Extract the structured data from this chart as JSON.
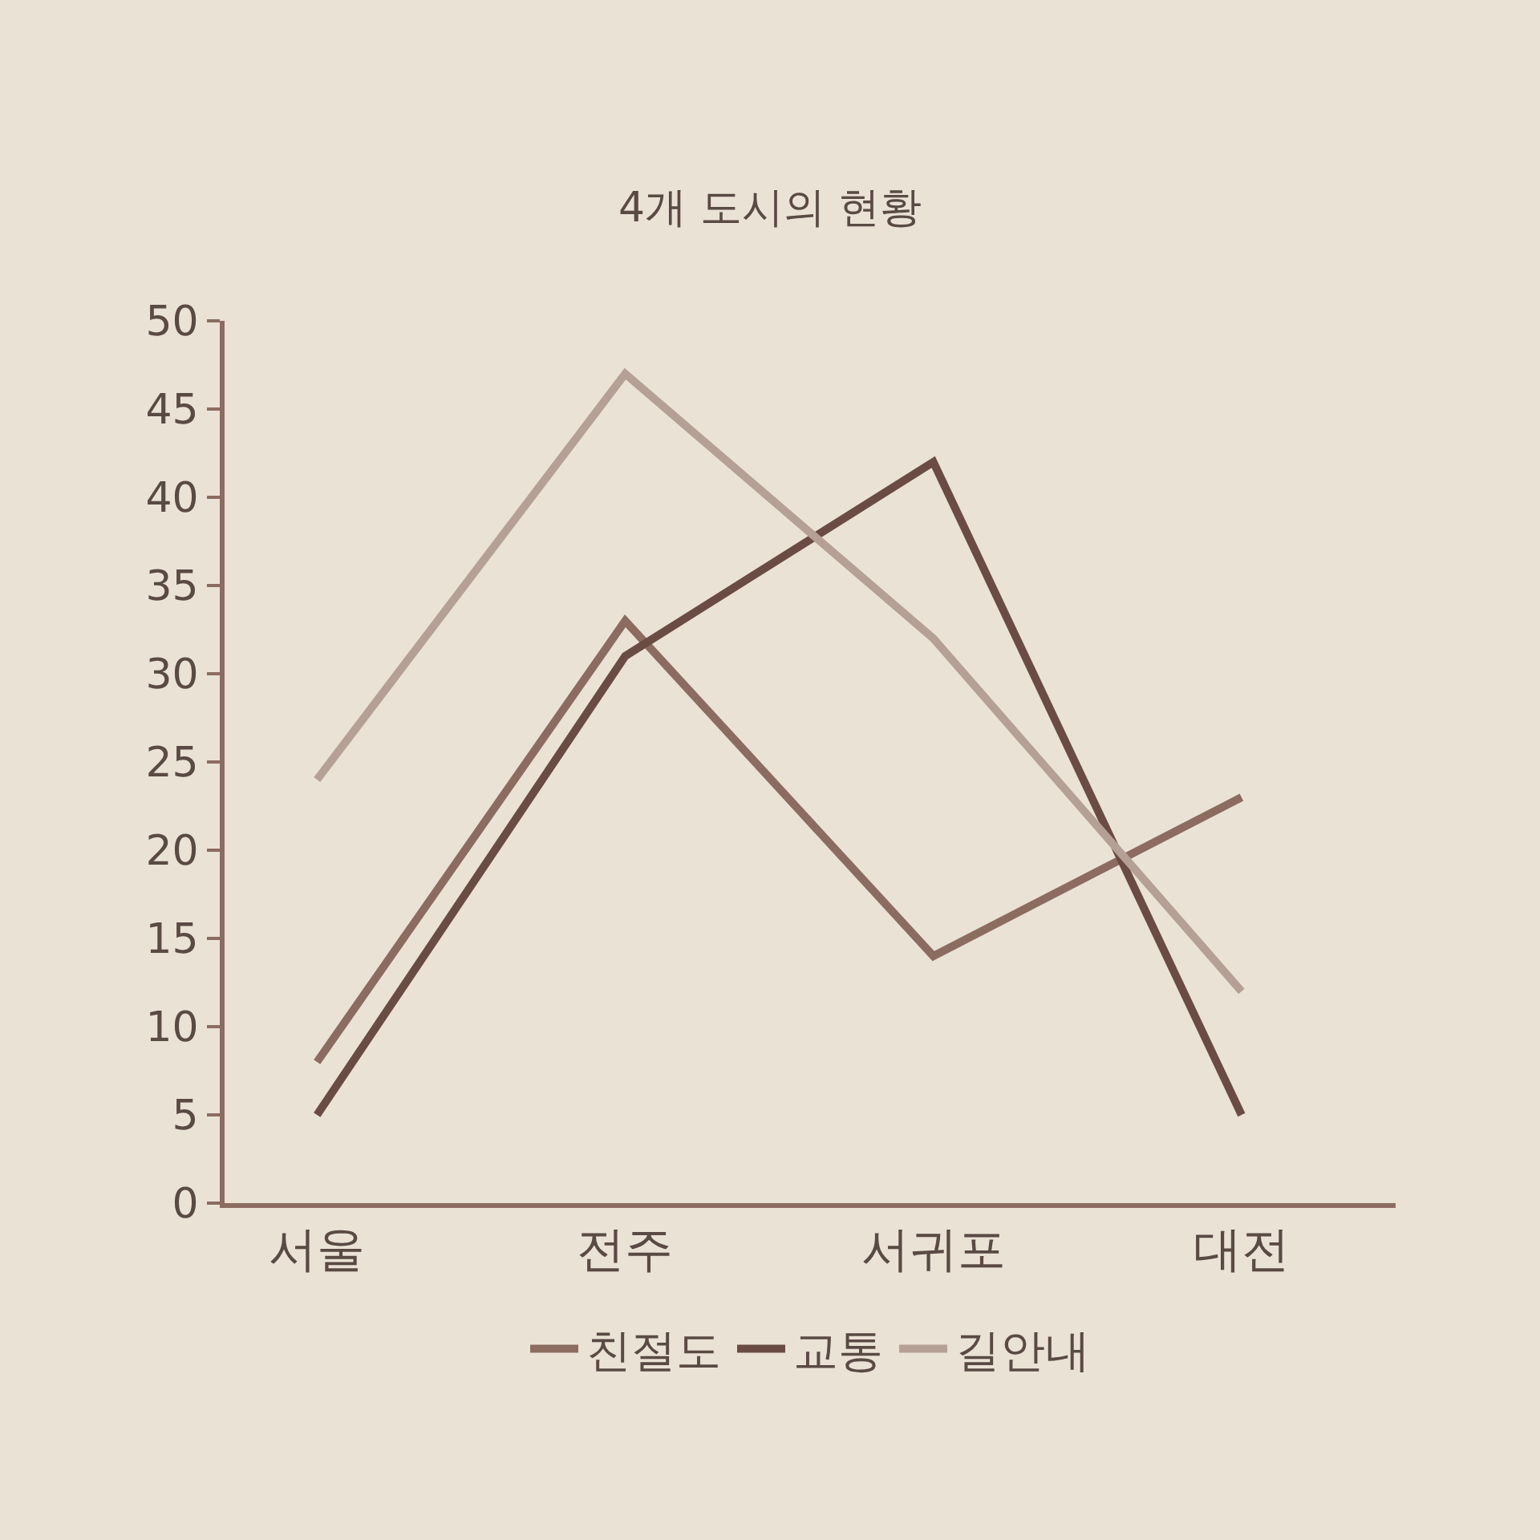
{
  "chart_data": {
    "type": "line",
    "title": "4개 도시의 현황",
    "categories": [
      "서울",
      "전주",
      "서귀포",
      "대전"
    ],
    "series": [
      {
        "name": "친절도",
        "color": "#8c6c60",
        "values": [
          8,
          33,
          14,
          23
        ]
      },
      {
        "name": "교통",
        "color": "#6a4c44",
        "values": [
          5,
          31,
          42,
          5
        ]
      },
      {
        "name": "길안내",
        "color": "#b5a096",
        "values": [
          24,
          47,
          32,
          12
        ]
      }
    ],
    "ylim": [
      0,
      50
    ],
    "yticks": [
      0,
      5,
      10,
      15,
      20,
      25,
      30,
      35,
      40,
      45,
      50
    ],
    "grid": false,
    "legend": "bottom",
    "marker": "none",
    "line_style": "solid"
  }
}
